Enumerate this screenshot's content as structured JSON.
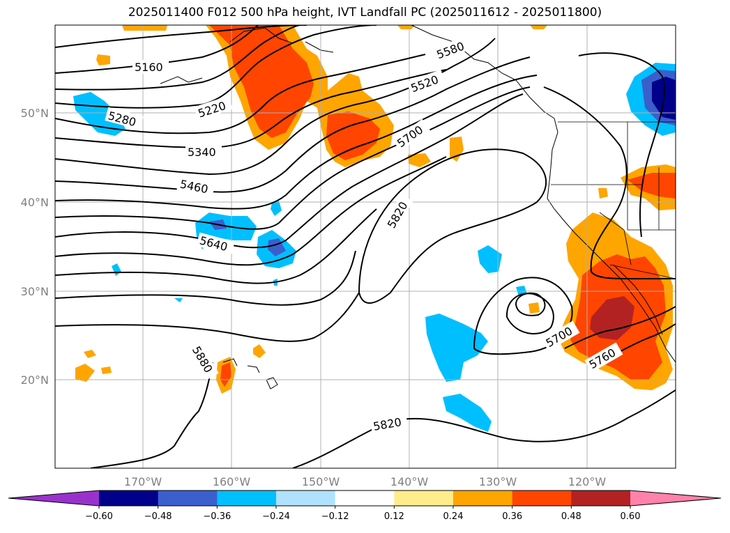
{
  "title": "2025011400 F012 500 hPa height, IVT Landfall PC (2025011612 - 2025011800)",
  "map": {
    "lon_labels": [
      "170°W",
      "160°W",
      "150°W",
      "140°W",
      "130°W",
      "120°W"
    ],
    "lat_labels": [
      "50°N",
      "40°N",
      "30°N",
      "20°N"
    ],
    "contour_labels": [
      "5160",
      "5220",
      "5280",
      "5340",
      "5460",
      "5520",
      "5580",
      "5640",
      "5700",
      "5820",
      "5880",
      "5700",
      "5760",
      "5820"
    ]
  },
  "colorbar": {
    "ticks": [
      "−0.60",
      "−0.48",
      "−0.36",
      "−0.24",
      "−0.12",
      "0.12",
      "0.24",
      "0.36",
      "0.48",
      "0.60"
    ],
    "colors": [
      "#9932cc",
      "#00008b",
      "#3a5fcd",
      "#00bfff",
      "#b0e2ff",
      "#ffffff",
      "#ffec8b",
      "#ffa500",
      "#ff4500",
      "#b22222",
      "#ff82ab"
    ]
  }
}
